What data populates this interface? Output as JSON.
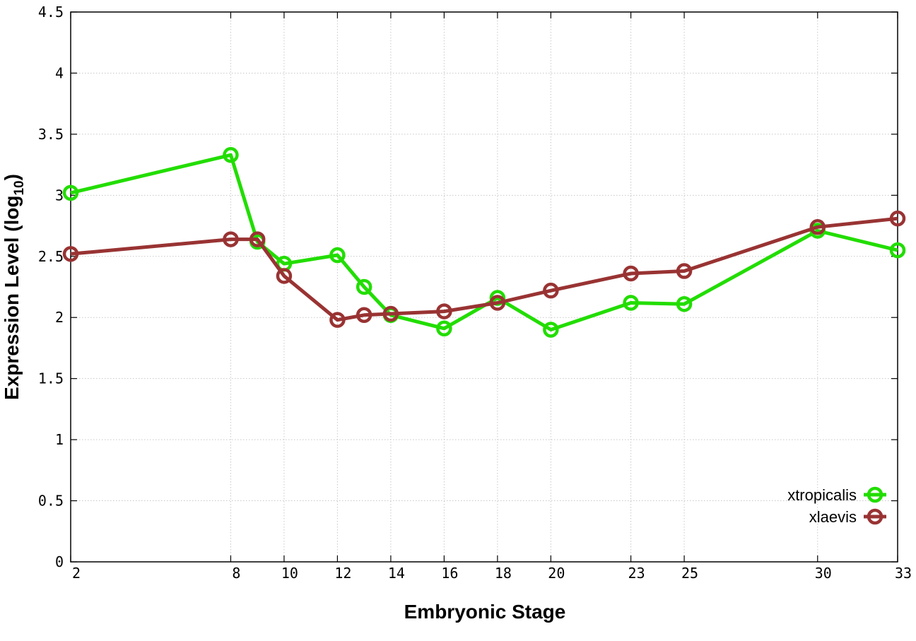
{
  "chart_data": {
    "type": "line",
    "title": "",
    "xlabel": "Embryonic Stage",
    "ylabel_main": "Expression Level (log",
    "ylabel_sub": "10",
    "ylabel_close": ")",
    "xlim": [
      2,
      33
    ],
    "ylim": [
      0,
      4.5
    ],
    "xticks": [
      2,
      8,
      10,
      12,
      14,
      16,
      18,
      20,
      23,
      25,
      30,
      33
    ],
    "xtick_labels": [
      "2",
      "8",
      "10",
      "12",
      "14",
      "16",
      "18",
      "20",
      "23",
      "25",
      "30",
      "33"
    ],
    "yticks": [
      0,
      0.5,
      1,
      1.5,
      2,
      2.5,
      3,
      3.5,
      4,
      4.5
    ],
    "ytick_labels": [
      "0",
      "0.5",
      "1",
      "1.5",
      "2",
      "2.5",
      "3",
      "3.5",
      "4",
      "4.5"
    ],
    "grid": true,
    "legend_position": "bottom-right",
    "x": [
      2,
      8,
      9,
      10,
      12,
      13,
      14,
      16,
      18,
      20,
      23,
      25,
      30,
      33
    ],
    "series": [
      {
        "name": "xtropicalis",
        "color": "#22dd00",
        "values": [
          3.02,
          3.33,
          2.62,
          2.44,
          2.51,
          2.25,
          2.02,
          1.91,
          2.16,
          1.9,
          2.12,
          2.11,
          2.71,
          2.55
        ]
      },
      {
        "name": "xlaevis",
        "color": "#993333",
        "values": [
          2.52,
          2.64,
          2.64,
          2.34,
          1.98,
          2.02,
          2.03,
          2.05,
          2.12,
          2.22,
          2.36,
          2.38,
          2.74,
          2.81
        ]
      }
    ]
  }
}
